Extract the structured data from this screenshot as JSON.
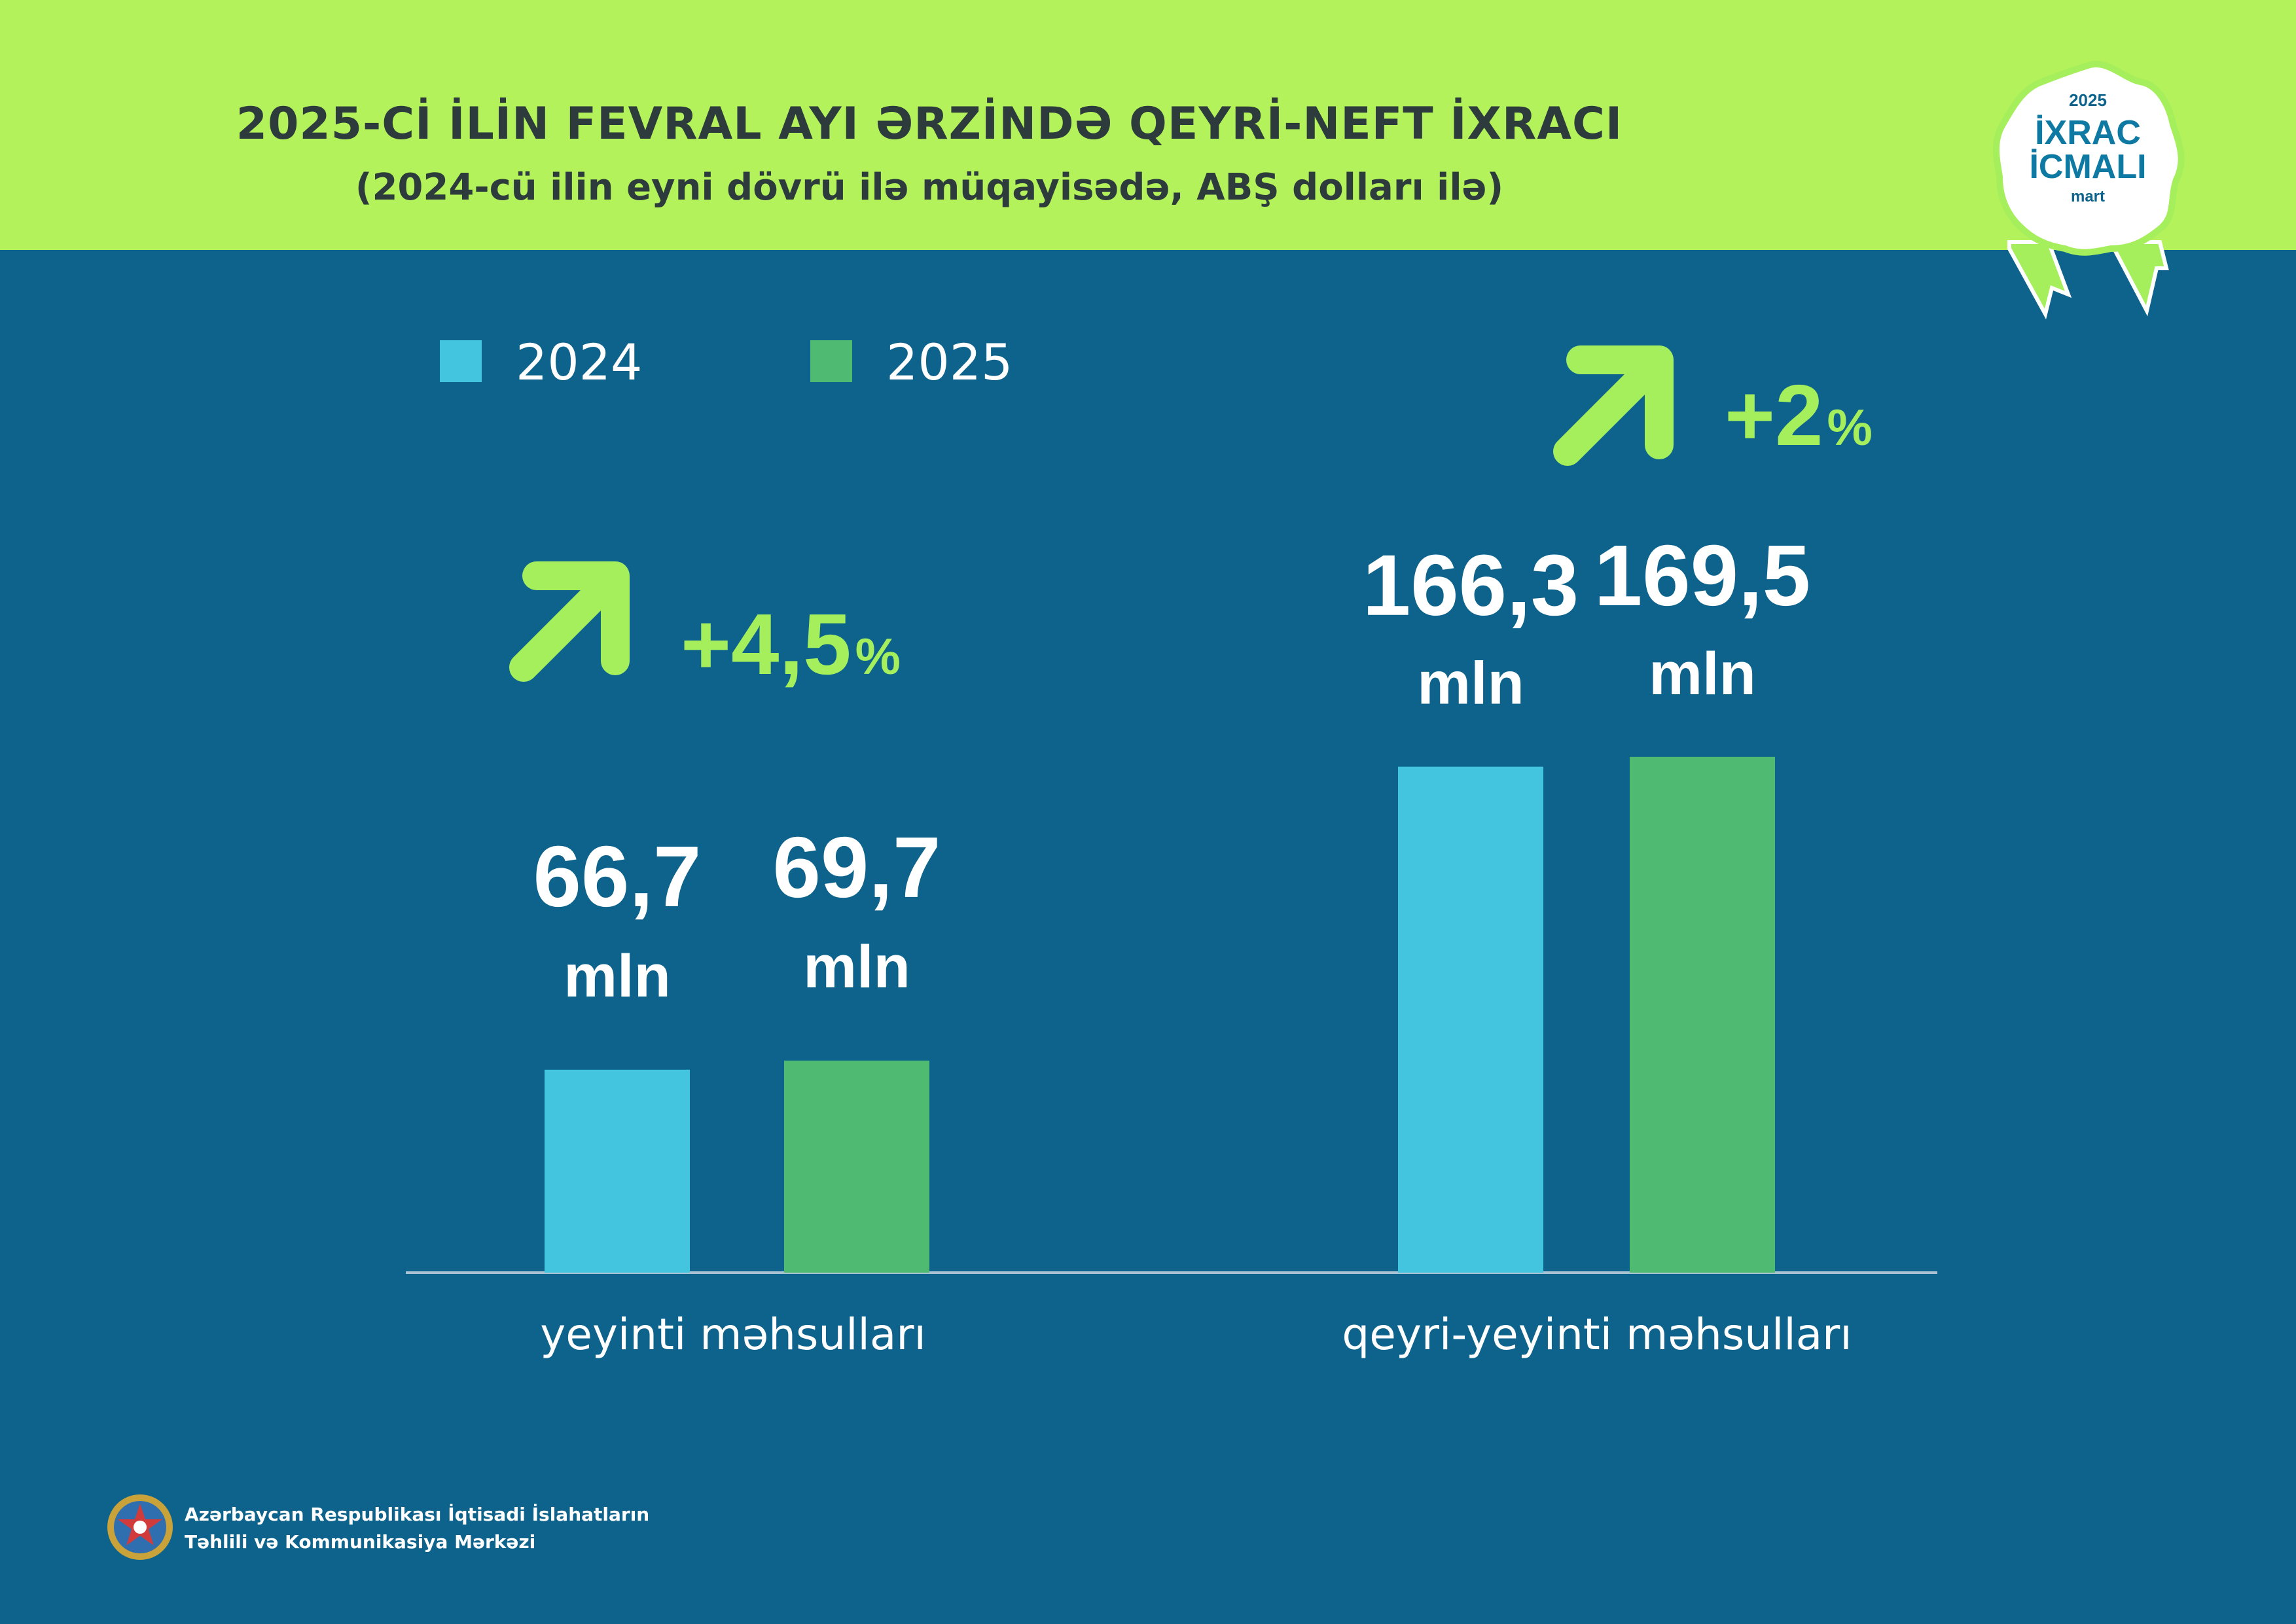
{
  "header": {
    "title": "2025-Cİ İLİN FEVRAL AYI ƏRZİNDƏ QEYRİ-NEFT İXRACI",
    "subtitle": "(2024-cü ilin eyni dövrü ilə müqayisədə, ABŞ dolları ilə)"
  },
  "badge": {
    "year": "2025",
    "line1": "İXRAC",
    "line2": "İCMALI",
    "month": "mart"
  },
  "footer": {
    "line1": "Azərbaycan Respublikası İqtisadi İslahatların",
    "line2": "Təhlili və Kommunikasiya Mərkəzi"
  },
  "colors": {
    "background": "#0e638c",
    "header": "#b3f25a",
    "accent": "#a5ee5c",
    "series_2024": "#43c5e0",
    "series_2025": "#4fba72"
  },
  "icons": {
    "growth": "arrow-up-right-icon",
    "emblem": "state-emblem-icon",
    "badge": "rosette-badge-icon"
  },
  "chart_data": {
    "type": "bar",
    "categories": [
      "yeyinti məhsulları",
      "qeyri-yeyinti məhsulları"
    ],
    "series": [
      {
        "name": "2024",
        "values": [
          66.7,
          166.3
        ],
        "labels": [
          "66,7",
          "166,3"
        ]
      },
      {
        "name": "2025",
        "values": [
          69.7,
          169.5
        ],
        "labels": [
          "69,7",
          "169,5"
        ]
      }
    ],
    "unit": "mln",
    "growth": [
      {
        "value": "+4,5",
        "unit": "%"
      },
      {
        "value": "+2",
        "unit": "%"
      }
    ],
    "ylim": [
      0,
      190
    ],
    "grid": false,
    "legend": "top-left"
  }
}
